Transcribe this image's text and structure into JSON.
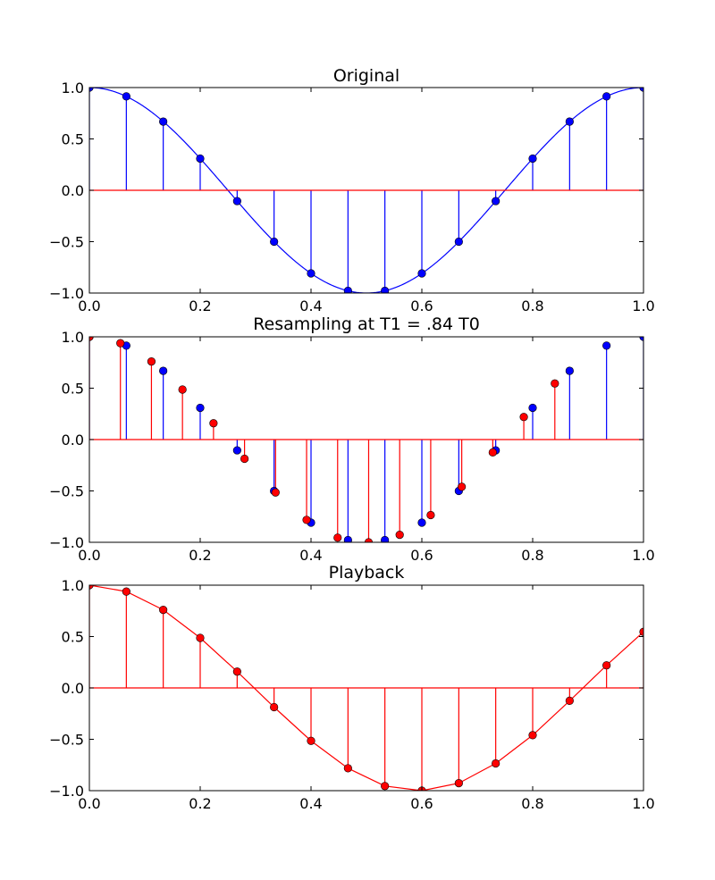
{
  "chart_data": [
    {
      "type": "stem",
      "title": "Original",
      "xlim": [
        0,
        1
      ],
      "ylim": [
        -1,
        1
      ],
      "xticks": [
        "0.0",
        "0.2",
        "0.4",
        "0.6",
        "0.8",
        "1.0"
      ],
      "yticks": [
        "1.0",
        "0.5",
        "0.0",
        "−0.5",
        "−1.0"
      ],
      "grid": false,
      "curve": {
        "color": "#0000ff",
        "function": "cos(2*pi*x)",
        "x_range": [
          0,
          1
        ]
      },
      "baseline_color": "#ff0000",
      "series": [
        {
          "color": "#0000ff",
          "x": [
            0,
            0.0667,
            0.1333,
            0.2,
            0.2667,
            0.3333,
            0.4,
            0.4667,
            0.5333,
            0.6,
            0.6667,
            0.7333,
            0.8,
            0.8667,
            0.9333,
            1.0
          ],
          "y": [
            1.0,
            0.914,
            0.669,
            0.309,
            -0.105,
            -0.5,
            -0.809,
            -0.978,
            -0.978,
            -0.809,
            -0.5,
            -0.105,
            0.309,
            0.669,
            0.914,
            1.0
          ]
        }
      ]
    },
    {
      "type": "stem",
      "title": "Resampling at T1 = .84 T0",
      "xlim": [
        0,
        1
      ],
      "ylim": [
        -1,
        1
      ],
      "xticks": [
        "0.0",
        "0.2",
        "0.4",
        "0.6",
        "0.8",
        "1.0"
      ],
      "yticks": [
        "1.0",
        "0.5",
        "0.0",
        "−0.5",
        "−1.0"
      ],
      "grid": false,
      "baseline_color": "#ff0000",
      "series": [
        {
          "color": "#0000ff",
          "x": [
            0,
            0.0667,
            0.1333,
            0.2,
            0.2667,
            0.3333,
            0.4,
            0.4667,
            0.5333,
            0.6,
            0.6667,
            0.7333,
            0.8,
            0.8667,
            0.9333,
            1.0
          ],
          "y": [
            1.0,
            0.914,
            0.669,
            0.309,
            -0.105,
            -0.5,
            -0.809,
            -0.978,
            -0.978,
            -0.809,
            -0.5,
            -0.105,
            0.309,
            0.669,
            0.914,
            1.0
          ]
        },
        {
          "color": "#ff0000",
          "x": [
            0,
            0.056,
            0.112,
            0.168,
            0.224,
            0.28,
            0.336,
            0.392,
            0.448,
            0.504,
            0.56,
            0.616,
            0.672,
            0.728,
            0.784,
            0.84
          ],
          "y": [
            1.0,
            0.938,
            0.76,
            0.487,
            0.159,
            -0.187,
            -0.515,
            -0.782,
            -0.955,
            -1.0,
            -0.927,
            -0.735,
            -0.46,
            -0.125,
            0.22,
            0.546
          ]
        }
      ]
    },
    {
      "type": "stem",
      "title": "Playback",
      "xlim": [
        0,
        1
      ],
      "ylim": [
        -1,
        1
      ],
      "xticks": [
        "0.0",
        "0.2",
        "0.4",
        "0.6",
        "0.8",
        "1.0"
      ],
      "yticks": [
        "1.0",
        "0.5",
        "0.0",
        "−0.5",
        "−1.0"
      ],
      "grid": false,
      "baseline_color": "#ff0000",
      "connect_markers": true,
      "series": [
        {
          "color": "#ff0000",
          "x": [
            0,
            0.0667,
            0.1333,
            0.2,
            0.2667,
            0.3333,
            0.4,
            0.4667,
            0.5333,
            0.6,
            0.6667,
            0.7333,
            0.8,
            0.8667,
            0.9333,
            1.0
          ],
          "y": [
            1.0,
            0.938,
            0.76,
            0.487,
            0.159,
            -0.187,
            -0.515,
            -0.782,
            -0.955,
            -1.0,
            -0.927,
            -0.735,
            -0.46,
            -0.125,
            0.22,
            0.546
          ]
        }
      ]
    }
  ]
}
